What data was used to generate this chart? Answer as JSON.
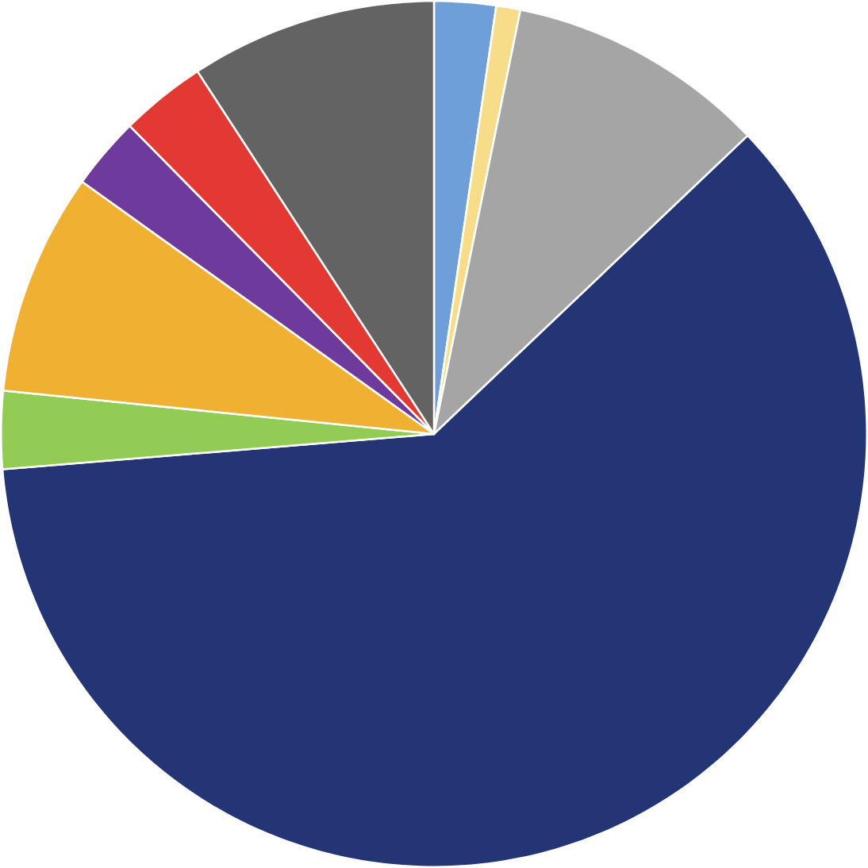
{
  "chart_data": {
    "type": "pie",
    "categories": [
      null,
      null,
      null,
      null,
      null,
      null,
      null,
      null,
      null
    ],
    "values": [
      2.3,
      0.9,
      9.7,
      60.8,
      2.9,
      8.3,
      2.7,
      3.2,
      9.2
    ],
    "colors": [
      "#6f9fd8",
      "#f7dc8a",
      "#a5a5a5",
      "#233574",
      "#92cc55",
      "#f0b133",
      "#6e3b9c",
      "#e23a33",
      "#636363"
    ]
  }
}
